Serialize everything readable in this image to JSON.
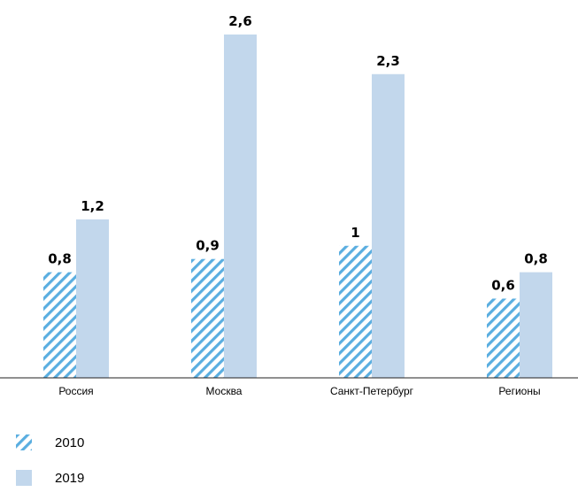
{
  "chart_data": {
    "type": "bar",
    "categories": [
      "Россия",
      "Москва",
      "Санкт-Петербург",
      "Регионы"
    ],
    "series": [
      {
        "name": "2010",
        "values": [
          0.8,
          0.9,
          1,
          0.6
        ],
        "value_labels": [
          "0,8",
          "0,9",
          "1",
          "0,6"
        ],
        "pattern": "diagonal-hatch",
        "color": "#5aaee0"
      },
      {
        "name": "2019",
        "values": [
          1.2,
          2.6,
          2.3,
          0.8
        ],
        "value_labels": [
          "1,2",
          "2,6",
          "2,3",
          "0,8"
        ],
        "pattern": "solid",
        "color": "#c2d7ec"
      }
    ],
    "ylim": [
      0,
      2.6
    ],
    "grid": false,
    "legend_position": "bottom-left"
  }
}
